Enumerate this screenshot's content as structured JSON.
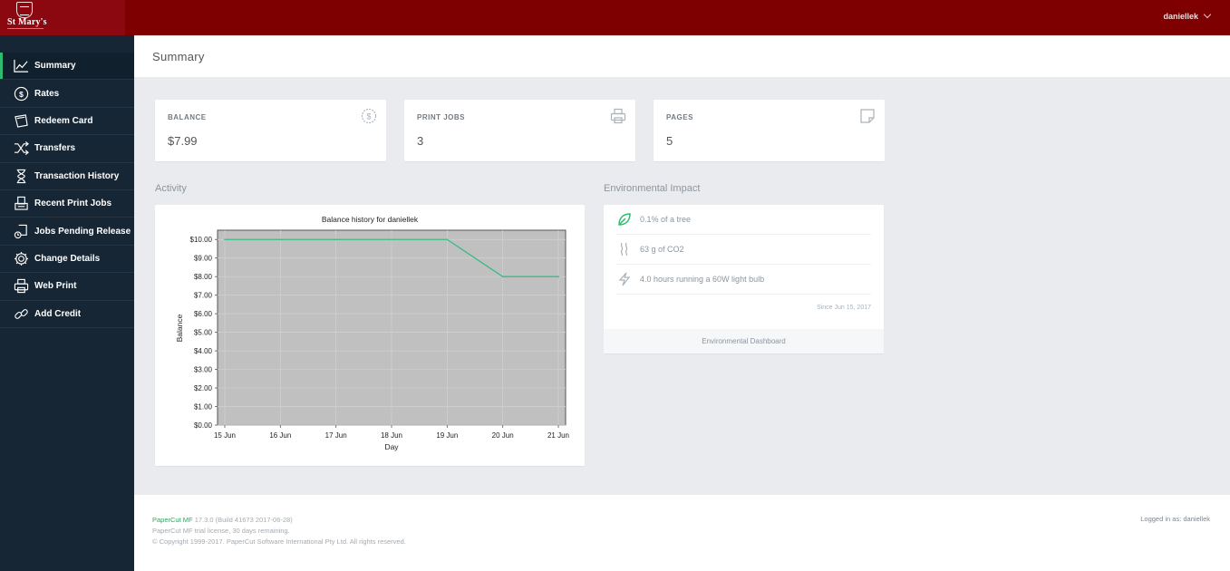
{
  "header": {
    "logo_text": "St Mary's",
    "username": "daniellek"
  },
  "sidebar": {
    "items": [
      {
        "label": "Summary",
        "icon": "chart-line-icon"
      },
      {
        "label": "Rates",
        "icon": "dollar-circle-icon"
      },
      {
        "label": "Redeem Card",
        "icon": "card-icon"
      },
      {
        "label": "Transfers",
        "icon": "shuffle-icon"
      },
      {
        "label": "Transaction History",
        "icon": "hourglass-icon"
      },
      {
        "label": "Recent Print Jobs",
        "icon": "print-tray-icon"
      },
      {
        "label": "Jobs Pending Release",
        "icon": "pending-icon"
      },
      {
        "label": "Change Details",
        "icon": "gear-icon"
      },
      {
        "label": "Web Print",
        "icon": "printer-icon"
      },
      {
        "label": "Add Credit",
        "icon": "link-icon"
      }
    ]
  },
  "page": {
    "title": "Summary"
  },
  "stats": {
    "balance": {
      "label": "BALANCE",
      "value": "$7.99",
      "icon": "dollar-circle-icon"
    },
    "print_jobs": {
      "label": "PRINT JOBS",
      "value": "3",
      "icon": "printer-icon"
    },
    "pages": {
      "label": "PAGES",
      "value": "5",
      "icon": "page-icon"
    }
  },
  "activity": {
    "title": "Activity"
  },
  "chart_data": {
    "type": "line",
    "title": "Balance history for daniellek",
    "xlabel": "Day",
    "ylabel": "Balance",
    "categories": [
      "15 Jun",
      "16 Jun",
      "17 Jun",
      "18 Jun",
      "19 Jun",
      "20 Jun",
      "21 Jun"
    ],
    "series": [
      {
        "values": [
          10.0,
          10.0,
          10.0,
          10.0,
          10.0,
          8.0,
          8.0
        ]
      }
    ],
    "yticks": [
      "$0.00",
      "$1.00",
      "$2.00",
      "$3.00",
      "$4.00",
      "$5.00",
      "$6.00",
      "$7.00",
      "$8.00",
      "$9.00",
      "$10.00"
    ],
    "ylim": [
      0,
      10.5
    ],
    "grid": true,
    "line_color": "#3dbb83",
    "plot_background": "#c0c0c0"
  },
  "environment": {
    "title": "Environmental Impact",
    "rows": [
      {
        "text": "0.1% of a tree",
        "icon": "leaf-icon"
      },
      {
        "text": "63 g of CO2",
        "icon": "co2-icon"
      },
      {
        "text": "4.0 hours running a 60W light bulb",
        "icon": "lightning-icon"
      }
    ],
    "since": "Since Jun 15, 2017",
    "dashboard_link": "Environmental Dashboard"
  },
  "footer": {
    "brand": "PaperCut MF",
    "version": "17.3.0 (Build 41673 2017-06-28)",
    "license": "PaperCut MF trial license, 30 days remaining.",
    "copyright": "© Copyright 1999-2017. PaperCut Software International Pty Ltd. All rights reserved.",
    "logged_in_label": "Logged in as:",
    "logged_in_user": "daniellek"
  },
  "colors": {
    "header": "#7e0000",
    "sidebar": "#162635",
    "active_accent": "#2ebd70"
  }
}
